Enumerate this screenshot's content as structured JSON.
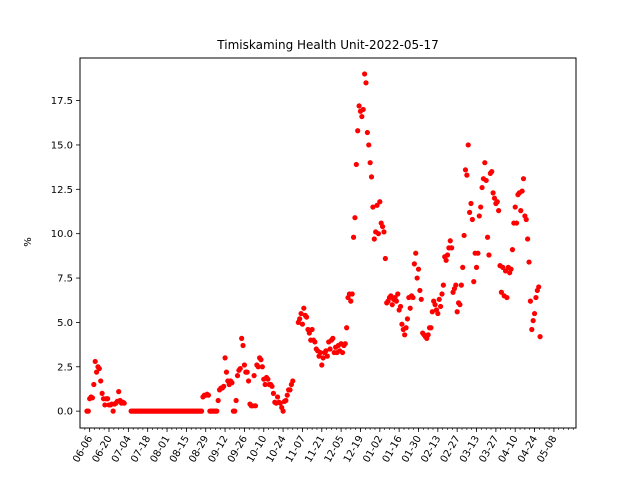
{
  "chart_data": {
    "type": "scatter",
    "title": "Timiskaming Health Unit-2022-05-17",
    "xlabel": "",
    "ylabel": "%",
    "marker_color": "#ff0000",
    "x_start": "2021-05-30",
    "x_end": "2022-05-24",
    "ylim": [
      -0.95,
      19.9
    ],
    "yticks": [
      0.0,
      2.5,
      5.0,
      7.5,
      10.0,
      12.5,
      15.0,
      17.5
    ],
    "ytick_labels": [
      "0.0",
      "2.5",
      "5.0",
      "7.5",
      "10.0",
      "12.5",
      "15.0",
      "17.5"
    ],
    "xtick_dates": [
      "2021-06-06",
      "2021-06-20",
      "2021-07-04",
      "2021-07-18",
      "2021-08-01",
      "2021-08-15",
      "2021-08-29",
      "2021-09-12",
      "2021-09-26",
      "2021-10-10",
      "2021-10-24",
      "2021-11-07",
      "2021-11-21",
      "2021-12-05",
      "2021-12-19",
      "2022-01-02",
      "2022-01-16",
      "2022-01-30",
      "2022-02-13",
      "2022-02-27",
      "2022-03-13",
      "2022-03-27",
      "2022-04-10",
      "2022-04-24",
      "2022-05-08"
    ],
    "xtick_labels": [
      "06-06",
      "06-20",
      "07-04",
      "07-18",
      "08-01",
      "08-15",
      "08-29",
      "09-12",
      "09-26",
      "10-10",
      "10-24",
      "11-07",
      "11-21",
      "12-05",
      "12-19",
      "01-02",
      "01-16",
      "01-30",
      "02-13",
      "02-27",
      "03-13",
      "03-27",
      "04-10",
      "04-24",
      "05-08"
    ],
    "points": [
      [
        "2021-06-04",
        0.0
      ],
      [
        "2021-06-05",
        0.0
      ],
      [
        "2021-06-06",
        0.7
      ],
      [
        "2021-06-07",
        0.8
      ],
      [
        "2021-06-08",
        0.75
      ],
      [
        "2021-06-09",
        1.5
      ],
      [
        "2021-06-10",
        2.8
      ],
      [
        "2021-06-11",
        2.2
      ],
      [
        "2021-06-12",
        2.5
      ],
      [
        "2021-06-13",
        2.4
      ],
      [
        "2021-06-14",
        1.7
      ],
      [
        "2021-06-15",
        1.0
      ],
      [
        "2021-06-16",
        0.7
      ],
      [
        "2021-06-17",
        0.35
      ],
      [
        "2021-06-18",
        0.7
      ],
      [
        "2021-06-19",
        0.7
      ],
      [
        "2021-06-20",
        0.35
      ],
      [
        "2021-06-21",
        0.35
      ],
      [
        "2021-06-22",
        0.4
      ],
      [
        "2021-06-23",
        0.0
      ],
      [
        "2021-06-24",
        0.4
      ],
      [
        "2021-06-25",
        0.45
      ],
      [
        "2021-06-26",
        0.55
      ],
      [
        "2021-06-27",
        1.1
      ],
      [
        "2021-06-28",
        0.6
      ],
      [
        "2021-06-29",
        0.45
      ],
      [
        "2021-06-30",
        0.5
      ],
      [
        "2021-07-01",
        0.45
      ],
      [
        "2021-07-06",
        0.0
      ],
      [
        "2021-07-07",
        0.0
      ],
      [
        "2021-07-08",
        0.0
      ],
      [
        "2021-07-09",
        0.0
      ],
      [
        "2021-07-10",
        0.0
      ],
      [
        "2021-07-11",
        0.0
      ],
      [
        "2021-07-12",
        0.0
      ],
      [
        "2021-07-13",
        0.0
      ],
      [
        "2021-07-14",
        0.0
      ],
      [
        "2021-07-15",
        0.0
      ],
      [
        "2021-07-16",
        0.0
      ],
      [
        "2021-07-17",
        0.0
      ],
      [
        "2021-07-18",
        0.0
      ],
      [
        "2021-07-19",
        0.0
      ],
      [
        "2021-07-20",
        0.0
      ],
      [
        "2021-07-21",
        0.0
      ],
      [
        "2021-07-22",
        0.0
      ],
      [
        "2021-07-23",
        0.0
      ],
      [
        "2021-07-24",
        0.0
      ],
      [
        "2021-07-25",
        0.0
      ],
      [
        "2021-07-26",
        0.0
      ],
      [
        "2021-07-27",
        0.0
      ],
      [
        "2021-07-28",
        0.0
      ],
      [
        "2021-07-29",
        0.0
      ],
      [
        "2021-07-30",
        0.0
      ],
      [
        "2021-07-31",
        0.0
      ],
      [
        "2021-08-01",
        0.0
      ],
      [
        "2021-08-02",
        0.0
      ],
      [
        "2021-08-03",
        0.0
      ],
      [
        "2021-08-04",
        0.0
      ],
      [
        "2021-08-05",
        0.0
      ],
      [
        "2021-08-06",
        0.0
      ],
      [
        "2021-08-07",
        0.0
      ],
      [
        "2021-08-08",
        0.0
      ],
      [
        "2021-08-09",
        0.0
      ],
      [
        "2021-08-10",
        0.0
      ],
      [
        "2021-08-11",
        0.0
      ],
      [
        "2021-08-12",
        0.0
      ],
      [
        "2021-08-13",
        0.0
      ],
      [
        "2021-08-14",
        0.0
      ],
      [
        "2021-08-15",
        0.0
      ],
      [
        "2021-08-16",
        0.0
      ],
      [
        "2021-08-17",
        0.0
      ],
      [
        "2021-08-18",
        0.0
      ],
      [
        "2021-08-19",
        0.0
      ],
      [
        "2021-08-20",
        0.0
      ],
      [
        "2021-08-21",
        0.0
      ],
      [
        "2021-08-22",
        0.0
      ],
      [
        "2021-08-23",
        0.0
      ],
      [
        "2021-08-24",
        0.0
      ],
      [
        "2021-08-25",
        0.0
      ],
      [
        "2021-08-26",
        0.0
      ],
      [
        "2021-08-27",
        0.8
      ],
      [
        "2021-08-28",
        0.9
      ],
      [
        "2021-08-29",
        0.9
      ],
      [
        "2021-08-30",
        0.95
      ],
      [
        "2021-08-31",
        0.9
      ],
      [
        "2021-09-01",
        0.0
      ],
      [
        "2021-09-02",
        0.0
      ],
      [
        "2021-09-03",
        0.0
      ],
      [
        "2021-09-04",
        0.0
      ],
      [
        "2021-09-05",
        0.0
      ],
      [
        "2021-09-06",
        0.0
      ],
      [
        "2021-09-07",
        0.6
      ],
      [
        "2021-09-08",
        1.2
      ],
      [
        "2021-09-09",
        1.3
      ],
      [
        "2021-09-10",
        1.3
      ],
      [
        "2021-09-11",
        1.4
      ],
      [
        "2021-09-12",
        3.0
      ],
      [
        "2021-09-13",
        2.2
      ],
      [
        "2021-09-14",
        1.7
      ],
      [
        "2021-09-15",
        1.5
      ],
      [
        "2021-09-16",
        1.7
      ],
      [
        "2021-09-17",
        1.6
      ],
      [
        "2021-09-18",
        0.0
      ],
      [
        "2021-09-19",
        0.0
      ],
      [
        "2021-09-20",
        0.6
      ],
      [
        "2021-09-21",
        2.0
      ],
      [
        "2021-09-22",
        2.3
      ],
      [
        "2021-09-23",
        2.4
      ],
      [
        "2021-09-24",
        4.1
      ],
      [
        "2021-09-25",
        3.7
      ],
      [
        "2021-09-26",
        2.6
      ],
      [
        "2021-09-27",
        2.2
      ],
      [
        "2021-09-28",
        2.2
      ],
      [
        "2021-09-29",
        1.7
      ],
      [
        "2021-09-30",
        0.4
      ],
      [
        "2021-10-01",
        0.3
      ],
      [
        "2021-10-02",
        0.3
      ],
      [
        "2021-10-03",
        2.0
      ],
      [
        "2021-10-04",
        0.3
      ],
      [
        "2021-10-05",
        2.6
      ],
      [
        "2021-10-06",
        2.5
      ],
      [
        "2021-10-07",
        3.0
      ],
      [
        "2021-10-08",
        2.9
      ],
      [
        "2021-10-09",
        2.5
      ],
      [
        "2021-10-10",
        1.8
      ],
      [
        "2021-10-11",
        1.5
      ],
      [
        "2021-10-12",
        1.9
      ],
      [
        "2021-10-13",
        1.8
      ],
      [
        "2021-10-14",
        1.5
      ],
      [
        "2021-10-15",
        1.5
      ],
      [
        "2021-10-16",
        1.4
      ],
      [
        "2021-10-17",
        1.0
      ],
      [
        "2021-10-18",
        0.5
      ],
      [
        "2021-10-19",
        0.45
      ],
      [
        "2021-10-20",
        0.8
      ],
      [
        "2021-10-21",
        0.5
      ],
      [
        "2021-10-22",
        0.45
      ],
      [
        "2021-10-23",
        0.2
      ],
      [
        "2021-10-24",
        0.0
      ],
      [
        "2021-10-25",
        0.55
      ],
      [
        "2021-10-26",
        0.6
      ],
      [
        "2021-10-27",
        0.9
      ],
      [
        "2021-10-28",
        1.2
      ],
      [
        "2021-10-29",
        1.2
      ],
      [
        "2021-10-30",
        1.5
      ],
      [
        "2021-10-31",
        1.7
      ],
      [
        "2021-11-04",
        5.0
      ],
      [
        "2021-11-05",
        5.2
      ],
      [
        "2021-11-06",
        5.5
      ],
      [
        "2021-11-07",
        4.9
      ],
      [
        "2021-11-08",
        5.8
      ],
      [
        "2021-11-09",
        5.4
      ],
      [
        "2021-11-10",
        5.3
      ],
      [
        "2021-11-11",
        4.6
      ],
      [
        "2021-11-12",
        4.4
      ],
      [
        "2021-11-13",
        4.0
      ],
      [
        "2021-11-14",
        4.6
      ],
      [
        "2021-11-15",
        4.0
      ],
      [
        "2021-11-16",
        3.9
      ],
      [
        "2021-11-17",
        3.5
      ],
      [
        "2021-11-18",
        3.4
      ],
      [
        "2021-11-19",
        3.1
      ],
      [
        "2021-11-20",
        3.3
      ],
      [
        "2021-11-21",
        2.6
      ],
      [
        "2021-11-22",
        3.0
      ],
      [
        "2021-11-23",
        3.3
      ],
      [
        "2021-11-24",
        3.4
      ],
      [
        "2021-11-25",
        3.1
      ],
      [
        "2021-11-26",
        3.9
      ],
      [
        "2021-11-27",
        3.5
      ],
      [
        "2021-11-28",
        4.0
      ],
      [
        "2021-11-29",
        4.1
      ],
      [
        "2021-11-30",
        3.3
      ],
      [
        "2021-12-01",
        3.6
      ],
      [
        "2021-12-02",
        3.3
      ],
      [
        "2021-12-03",
        3.7
      ],
      [
        "2021-12-04",
        3.4
      ],
      [
        "2021-12-05",
        3.8
      ],
      [
        "2021-12-06",
        3.3
      ],
      [
        "2021-12-07",
        3.7
      ],
      [
        "2021-12-08",
        3.8
      ],
      [
        "2021-12-09",
        4.7
      ],
      [
        "2021-12-10",
        6.4
      ],
      [
        "2021-12-11",
        6.6
      ],
      [
        "2021-12-12",
        6.2
      ],
      [
        "2021-12-13",
        6.6
      ],
      [
        "2021-12-14",
        9.8
      ],
      [
        "2021-12-15",
        10.9
      ],
      [
        "2021-12-16",
        13.9
      ],
      [
        "2021-12-17",
        15.8
      ],
      [
        "2021-12-18",
        17.2
      ],
      [
        "2021-12-19",
        16.9
      ],
      [
        "2021-12-20",
        16.6
      ],
      [
        "2021-12-21",
        17.0
      ],
      [
        "2021-12-22",
        19.0
      ],
      [
        "2021-12-23",
        18.5
      ],
      [
        "2021-12-24",
        15.7
      ],
      [
        "2021-12-25",
        15.0
      ],
      [
        "2021-12-26",
        14.0
      ],
      [
        "2021-12-27",
        13.2
      ],
      [
        "2021-12-28",
        11.5
      ],
      [
        "2021-12-29",
        9.7
      ],
      [
        "2021-12-30",
        10.1
      ],
      [
        "2021-12-31",
        11.6
      ],
      [
        "2022-01-01",
        10.0
      ],
      [
        "2022-01-02",
        11.8
      ],
      [
        "2022-01-03",
        10.6
      ],
      [
        "2022-01-04",
        10.4
      ],
      [
        "2022-01-05",
        10.1
      ],
      [
        "2022-01-06",
        8.6
      ],
      [
        "2022-01-07",
        6.1
      ],
      [
        "2022-01-08",
        6.2
      ],
      [
        "2022-01-09",
        6.4
      ],
      [
        "2022-01-10",
        6.5
      ],
      [
        "2022-01-11",
        6.0
      ],
      [
        "2022-01-12",
        6.3
      ],
      [
        "2022-01-13",
        6.4
      ],
      [
        "2022-01-14",
        6.2
      ],
      [
        "2022-01-15",
        6.6
      ],
      [
        "2022-01-16",
        5.7
      ],
      [
        "2022-01-17",
        5.9
      ],
      [
        "2022-01-18",
        4.9
      ],
      [
        "2022-01-19",
        4.6
      ],
      [
        "2022-01-20",
        4.3
      ],
      [
        "2022-01-21",
        4.7
      ],
      [
        "2022-01-22",
        5.2
      ],
      [
        "2022-01-23",
        6.4
      ],
      [
        "2022-01-24",
        5.8
      ],
      [
        "2022-01-25",
        6.5
      ],
      [
        "2022-01-26",
        6.4
      ],
      [
        "2022-01-27",
        8.3
      ],
      [
        "2022-01-28",
        8.9
      ],
      [
        "2022-01-29",
        7.5
      ],
      [
        "2022-01-30",
        8.0
      ],
      [
        "2022-01-31",
        6.8
      ],
      [
        "2022-02-01",
        6.3
      ],
      [
        "2022-02-02",
        4.4
      ],
      [
        "2022-02-03",
        4.3
      ],
      [
        "2022-02-04",
        4.2
      ],
      [
        "2022-02-05",
        4.1
      ],
      [
        "2022-02-06",
        4.3
      ],
      [
        "2022-02-07",
        4.7
      ],
      [
        "2022-02-08",
        4.7
      ],
      [
        "2022-02-09",
        5.6
      ],
      [
        "2022-02-10",
        6.2
      ],
      [
        "2022-02-11",
        6.0
      ],
      [
        "2022-02-12",
        5.7
      ],
      [
        "2022-02-13",
        5.5
      ],
      [
        "2022-02-14",
        6.3
      ],
      [
        "2022-02-15",
        5.9
      ],
      [
        "2022-02-16",
        6.6
      ],
      [
        "2022-02-17",
        7.1
      ],
      [
        "2022-02-18",
        8.7
      ],
      [
        "2022-02-19",
        8.5
      ],
      [
        "2022-02-20",
        8.8
      ],
      [
        "2022-02-21",
        9.2
      ],
      [
        "2022-02-22",
        9.6
      ],
      [
        "2022-02-23",
        9.2
      ],
      [
        "2022-02-24",
        6.7
      ],
      [
        "2022-02-25",
        6.9
      ],
      [
        "2022-02-26",
        7.1
      ],
      [
        "2022-02-27",
        5.6
      ],
      [
        "2022-02-28",
        6.1
      ],
      [
        "2022-03-01",
        6.0
      ],
      [
        "2022-03-02",
        7.1
      ],
      [
        "2022-03-03",
        8.1
      ],
      [
        "2022-03-04",
        9.9
      ],
      [
        "2022-03-05",
        13.6
      ],
      [
        "2022-03-06",
        13.3
      ],
      [
        "2022-03-07",
        15.0
      ],
      [
        "2022-03-08",
        11.2
      ],
      [
        "2022-03-09",
        11.7
      ],
      [
        "2022-03-10",
        10.8
      ],
      [
        "2022-03-11",
        7.3
      ],
      [
        "2022-03-12",
        8.9
      ],
      [
        "2022-03-13",
        8.1
      ],
      [
        "2022-03-14",
        8.9
      ],
      [
        "2022-03-15",
        11.0
      ],
      [
        "2022-03-16",
        11.5
      ],
      [
        "2022-03-17",
        12.6
      ],
      [
        "2022-03-18",
        13.1
      ],
      [
        "2022-03-19",
        14.0
      ],
      [
        "2022-03-20",
        13.0
      ],
      [
        "2022-03-21",
        9.8
      ],
      [
        "2022-03-22",
        8.8
      ],
      [
        "2022-03-23",
        13.4
      ],
      [
        "2022-03-24",
        13.5
      ],
      [
        "2022-03-25",
        12.3
      ],
      [
        "2022-03-26",
        12.0
      ],
      [
        "2022-03-27",
        11.7
      ],
      [
        "2022-03-28",
        11.8
      ],
      [
        "2022-03-29",
        11.3
      ],
      [
        "2022-03-30",
        8.2
      ],
      [
        "2022-03-31",
        6.7
      ],
      [
        "2022-04-01",
        8.1
      ],
      [
        "2022-04-02",
        6.5
      ],
      [
        "2022-04-03",
        7.9
      ],
      [
        "2022-04-04",
        6.4
      ],
      [
        "2022-04-05",
        8.1
      ],
      [
        "2022-04-06",
        7.8
      ],
      [
        "2022-04-07",
        8.0
      ],
      [
        "2022-04-08",
        9.1
      ],
      [
        "2022-04-09",
        10.6
      ],
      [
        "2022-04-10",
        11.5
      ],
      [
        "2022-04-11",
        10.6
      ],
      [
        "2022-04-12",
        12.2
      ],
      [
        "2022-04-13",
        12.3
      ],
      [
        "2022-04-14",
        11.3
      ],
      [
        "2022-04-15",
        12.4
      ],
      [
        "2022-04-16",
        13.1
      ],
      [
        "2022-04-17",
        11.0
      ],
      [
        "2022-04-18",
        10.8
      ],
      [
        "2022-04-19",
        9.7
      ],
      [
        "2022-04-20",
        8.4
      ],
      [
        "2022-04-21",
        6.2
      ],
      [
        "2022-04-22",
        4.6
      ],
      [
        "2022-04-23",
        5.1
      ],
      [
        "2022-04-24",
        5.5
      ],
      [
        "2022-04-25",
        6.4
      ],
      [
        "2022-04-26",
        6.8
      ],
      [
        "2022-04-27",
        7.0
      ],
      [
        "2022-04-28",
        4.2
      ]
    ]
  }
}
